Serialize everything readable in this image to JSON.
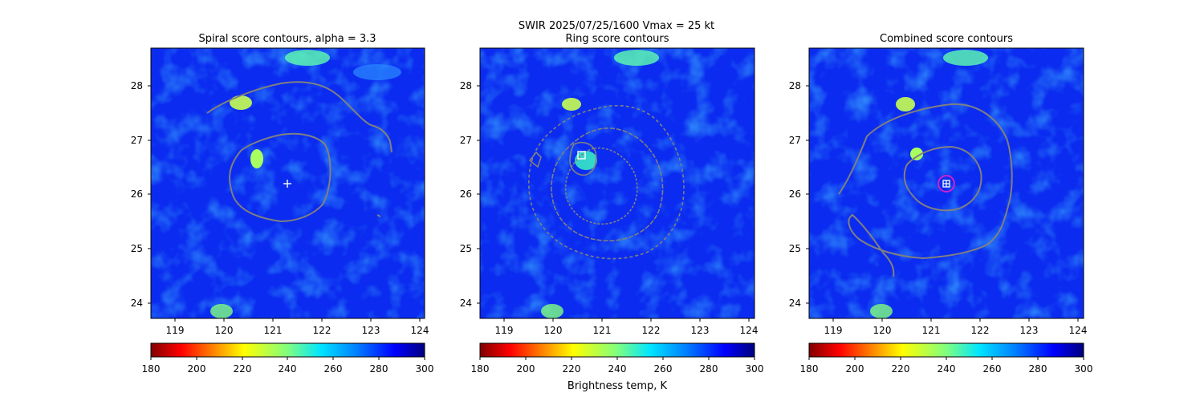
{
  "suptitle": {
    "line1": "SWIR  2025/07/25/1600    Vmax = 25 kt"
  },
  "colors": {
    "contour": "#808080",
    "marker_white": "#ffffff",
    "marker_magenta": "#cc22cc",
    "base_blue": "#0b2cf0"
  },
  "colorbar": {
    "label": "Brightness temp, K",
    "min": 180,
    "max": 300,
    "ticks": [
      "180",
      "200",
      "220",
      "240",
      "260",
      "280",
      "300"
    ],
    "colormap": "jet_reversed"
  },
  "chart_data": [
    {
      "type": "heatmap",
      "title": "Spiral score contours, alpha =  3.3",
      "xlim": [
        118.5,
        124.1
      ],
      "ylim": [
        23.7,
        28.7
      ],
      "xticks": [
        "119",
        "120",
        "121",
        "122",
        "123",
        "124"
      ],
      "yticks": [
        "24",
        "25",
        "26",
        "27",
        "28"
      ],
      "center_marker": {
        "type": "plus",
        "x": 121.3,
        "y": 26.2
      }
    },
    {
      "type": "heatmap",
      "title": "Ring score contours",
      "xlim": [
        118.5,
        124.1
      ],
      "ylim": [
        23.7,
        28.7
      ],
      "xticks": [
        "119",
        "120",
        "121",
        "122",
        "123",
        "124"
      ],
      "yticks": [
        "24",
        "25",
        "26",
        "27",
        "28"
      ],
      "center_marker": {
        "type": "square",
        "x": 120.6,
        "y": 26.7
      }
    },
    {
      "type": "heatmap",
      "title": "Combined score contours",
      "xlim": [
        118.5,
        124.1
      ],
      "ylim": [
        23.7,
        28.7
      ],
      "xticks": [
        "119",
        "120",
        "121",
        "122",
        "123",
        "124"
      ],
      "yticks": [
        "24",
        "25",
        "26",
        "27",
        "28"
      ],
      "center_marker": {
        "type": "circle-square",
        "x": 121.3,
        "y": 26.2
      }
    }
  ]
}
